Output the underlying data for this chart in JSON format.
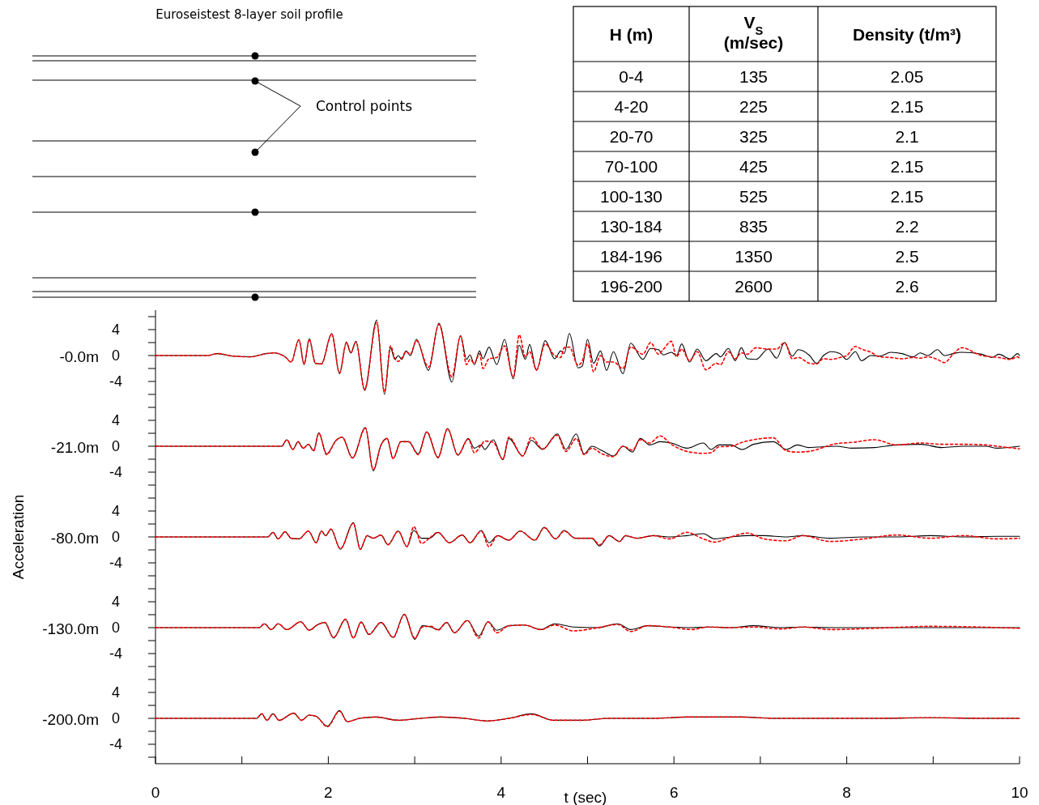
{
  "chart_data": [
    {
      "type": "other",
      "title": "Euroseistest 8-layer soil profile",
      "annotations": [
        "Control points"
      ]
    },
    {
      "type": "other",
      "annotations": [
        "H (m)",
        "V$_{S}$ (m/sec)",
        "Density (t/m³)",
        "0-4",
        "135",
        "2.05",
        "4-20",
        "225",
        "2.15",
        "20-70",
        "325",
        "2.1",
        "70-100",
        "425",
        "2.15",
        "100-130",
        "525",
        "2.15",
        "130-184",
        "835",
        "2.2",
        "184-196",
        "1350",
        "2.5",
        "196-200",
        "2600",
        "2.6"
      ]
    },
    {
      "type": "line",
      "title": "-0.0m",
      "xlim": [
        0,
        10
      ],
      "ylim": [
        -7,
        7
      ],
      "yticks": [
        {
          "value": -6,
          "label": null
        },
        -4,
        {
          "value": -2,
          "label": null
        },
        0,
        {
          "value": 2,
          "label": null
        },
        4,
        {
          "value": 6,
          "label": null
        }
      ],
      "tick_labels": "y",
      "x": [
        0,
        0.6,
        0.72,
        0.9,
        1.1,
        1.28,
        1.37,
        1.5,
        1.57,
        1.66,
        1.72,
        1.78,
        1.85,
        1.92,
        2.04,
        2.13,
        2.21,
        2.26,
        2.32,
        2.42,
        2.56,
        2.65,
        2.72,
        2.77,
        2.81,
        2.85,
        2.9,
        2.95,
        3.02,
        3.16,
        3.28,
        3.43,
        3.53,
        3.6,
        3.64,
        3.69,
        3.75,
        3.79,
        3.86,
        3.95,
        4.04,
        4.14,
        4.21,
        4.28,
        4.33,
        4.41,
        4.51,
        4.62,
        4.69,
        4.73,
        4.79,
        4.89,
        4.94,
        5.0,
        5.07,
        5.15,
        5.22,
        5.3,
        5.41,
        5.5,
        5.64,
        5.73,
        5.82,
        5.88,
        5.97,
        6.03,
        6.09,
        6.18,
        6.27,
        6.37,
        6.49,
        6.54,
        6.63,
        6.71,
        6.78,
        6.85,
        6.95,
        7.09,
        7.19,
        7.28,
        7.37,
        7.44,
        7.57,
        7.65,
        7.73,
        7.82,
        7.92,
        8.0,
        8.1,
        8.17,
        8.28,
        8.38,
        8.51,
        8.64,
        8.77,
        8.85,
        8.94,
        9.05,
        9.13,
        9.23,
        9.33,
        9.56,
        9.68,
        9.76,
        9.89,
        9.98,
        10
      ],
      "series": [
        {
          "color": "#000000",
          "line_style": "solid",
          "values": [
            0,
            0,
            0.3,
            -0.1,
            -0.2,
            0.3,
            0.4,
            -0.2,
            -1.0,
            2.5,
            -1.4,
            2.6,
            -1.2,
            -1.3,
            3.4,
            -2.8,
            2.1,
            0.4,
            2.2,
            -5.4,
            5.5,
            -6.0,
            1.2,
            -0.6,
            0,
            -0.6,
            0.7,
            0,
            2.5,
            -2.3,
            5.0,
            -4.1,
            3.1,
            -0.6,
            0.1,
            -1.4,
            0.7,
            -0.5,
            1.3,
            -1.4,
            2.5,
            -3.6,
            1.6,
            -0.6,
            1.7,
            -2.3,
            2.3,
            -0.5,
            0.7,
            0.3,
            3.4,
            -1.9,
            -1.6,
            2.5,
            -1.2,
            0.7,
            -2.3,
            0.6,
            -2.8,
            1.9,
            -0.6,
            1.1,
            0.9,
            0.1,
            0.5,
            0,
            1.8,
            -1.0,
            1.0,
            -0.8,
            0.3,
            -0.2,
            1.1,
            -0.8,
            1.2,
            -0.5,
            -0.6,
            1.0,
            -0.4,
            2.0,
            -0.1,
            0.9,
            0,
            -1.2,
            0,
            0.6,
            0.3,
            -0.6,
            0.6,
            -0.8,
            0,
            -0.1,
            0.5,
            0.3,
            -0.2,
            0.4,
            0,
            0.9,
            0,
            0.3,
            0.5,
            0.2,
            -0.3,
            0.2,
            -0.5,
            0.3,
            0
          ]
        },
        {
          "color": "#ff0000",
          "line_style": "dotted",
          "values": [
            0,
            0,
            0.3,
            -0.1,
            -0.2,
            0.3,
            0.4,
            -0.2,
            -1.0,
            2.4,
            -1.3,
            2.5,
            -1.2,
            -1.3,
            3.3,
            -2.7,
            2.0,
            0.4,
            2.1,
            -5.2,
            5.1,
            -5.6,
            1.5,
            -0.4,
            -0.9,
            -0.4,
            0.6,
            0.2,
            2.3,
            -1.8,
            4.8,
            -3.3,
            3.0,
            -1.4,
            -0.6,
            -1.2,
            0.3,
            -2.0,
            -0.5,
            -0.3,
            1.5,
            -3.3,
            3.2,
            -0.2,
            0.6,
            -2.2,
            1.8,
            0,
            -0.3,
            1.2,
            1.3,
            -1.5,
            -0.8,
            1.8,
            -2.5,
            0,
            -1.0,
            -1.0,
            -2.0,
            1.3,
            0.2,
            2.0,
            0.2,
            1.0,
            2.2,
            -0.2,
            1.0,
            -0.8,
            0.6,
            -2.2,
            -1.2,
            -1.4,
            0.6,
            -0.5,
            0.4,
            0.2,
            1.2,
            1.0,
            1.0,
            2.0,
            -0.5,
            -0.3,
            -1.2,
            -1.3,
            -0.5,
            -0.6,
            -0.3,
            0,
            1.4,
            1.0,
            0.5,
            -0.2,
            -0.3,
            -0.5,
            -0.3,
            -0.4,
            -0.2,
            -0.6,
            -1.1,
            0.2,
            1.2,
            0,
            -0.2,
            -0.3,
            -0.6,
            -0.2,
            -0.5
          ]
        }
      ]
    },
    {
      "type": "line",
      "title": "-21.0m",
      "xlim": [
        0,
        10
      ],
      "ylim": [
        -7,
        7
      ],
      "yticks": [
        {
          "value": -6,
          "label": null
        },
        -4,
        {
          "value": -2,
          "label": null
        },
        0,
        {
          "value": 2,
          "label": null
        },
        4,
        {
          "value": 6,
          "label": null
        }
      ],
      "tick_labels": "y",
      "x": [
        0,
        1.46,
        1.52,
        1.59,
        1.65,
        1.71,
        1.77,
        1.83,
        1.89,
        1.98,
        2.09,
        2.16,
        2.28,
        2.43,
        2.52,
        2.61,
        2.68,
        2.75,
        2.84,
        2.93,
        3.04,
        3.14,
        3.27,
        3.38,
        3.5,
        3.62,
        3.69,
        3.77,
        3.81,
        3.91,
        4.02,
        4.09,
        4.25,
        4.35,
        4.48,
        4.65,
        4.75,
        4.87,
        4.96,
        5.05,
        5.17,
        5.3,
        5.41,
        5.52,
        5.61,
        5.72,
        5.84,
        5.97,
        6.15,
        6.34,
        6.43,
        6.52,
        6.66,
        6.79,
        6.92,
        7.15,
        7.3,
        7.43,
        7.56,
        7.88,
        8.07,
        8.32,
        8.58,
        8.86,
        9.1,
        9.35,
        9.61,
        9.74,
        10
      ],
      "series": [
        {
          "color": "#000000",
          "line_style": "solid",
          "values": [
            0,
            0,
            1.0,
            -0.5,
            0.7,
            -0.3,
            0.3,
            -0.7,
            2.1,
            -1.2,
            0.9,
            1.4,
            -1.8,
            2.9,
            -3.8,
            0.2,
            1.2,
            -1.9,
            0.7,
            0.7,
            -1.2,
            2.2,
            -1.8,
            2.7,
            -1.4,
            1.2,
            -0.3,
            0.2,
            -0.5,
            1.0,
            -2.1,
            1.2,
            -1.5,
            0.9,
            -0.5,
            1.9,
            -0.5,
            1.9,
            -1.2,
            0,
            -0.7,
            -1.5,
            0,
            -0.9,
            1.2,
            0.2,
            0.7,
            0.5,
            -0.3,
            0.5,
            -0.5,
            0.2,
            0.2,
            -0.5,
            0.3,
            0.7,
            -0.5,
            0.2,
            -0.2,
            0,
            -0.3,
            -0.2,
            0.2,
            0.3,
            -0.2,
            0,
            0,
            -0.3,
            0
          ]
        },
        {
          "color": "#ff0000",
          "line_style": "dotted",
          "values": [
            0,
            0,
            1.0,
            -0.5,
            0.7,
            -0.3,
            0.3,
            -0.7,
            2.0,
            -1.3,
            0.9,
            1.4,
            -1.8,
            2.8,
            -3.6,
            0.2,
            1.2,
            -1.9,
            0.7,
            0.7,
            -1.3,
            2.2,
            -1.7,
            2.7,
            -1.3,
            1.1,
            -1.0,
            0.2,
            0.8,
            0.6,
            -2.0,
            1.4,
            -1.5,
            1.4,
            -0.4,
            1.7,
            -0.8,
            1.2,
            -1.3,
            -0.3,
            -1.2,
            -1.6,
            0,
            -0.6,
            1.0,
            0.5,
            1.6,
            0.3,
            -0.8,
            -1.1,
            -1.0,
            -0.1,
            0,
            0.6,
            1.0,
            1.3,
            -0.7,
            -0.9,
            -0.8,
            0.4,
            0.6,
            1.0,
            0.2,
            0.5,
            0.3,
            0.3,
            0.2,
            0,
            -0.4
          ]
        }
      ]
    },
    {
      "type": "line",
      "title": "-80.0m",
      "ylabel": "Acceleration",
      "xlim": [
        0,
        10
      ],
      "ylim": [
        -7,
        7
      ],
      "yticks": [
        {
          "value": -6,
          "label": null
        },
        -4,
        {
          "value": -2,
          "label": null
        },
        0,
        {
          "value": 2,
          "label": null
        },
        4,
        {
          "value": 6,
          "label": null
        }
      ],
      "tick_labels": "y",
      "x": [
        0,
        1.3,
        1.36,
        1.42,
        1.5,
        1.57,
        1.66,
        1.77,
        1.86,
        1.92,
        1.97,
        2.03,
        2.14,
        2.29,
        2.37,
        2.45,
        2.52,
        2.61,
        2.69,
        2.81,
        2.91,
        2.99,
        3.08,
        3.17,
        3.27,
        3.4,
        3.55,
        3.64,
        3.77,
        3.86,
        3.96,
        4.09,
        4.22,
        4.39,
        4.5,
        4.63,
        4.73,
        4.86,
        5.05,
        5.14,
        5.25,
        5.37,
        5.44,
        5.57,
        5.76,
        5.95,
        6.15,
        6.34,
        6.47,
        6.66,
        6.85,
        7.04,
        7.3,
        7.49,
        7.81,
        8.2,
        8.58,
        8.97,
        9.35,
        9.74,
        10
      ],
      "series": [
        {
          "color": "#000000",
          "line_style": "solid",
          "values": [
            0,
            0,
            0.7,
            -0.3,
            0.8,
            -0.2,
            -0.3,
            0.9,
            -0.9,
            0.9,
            0.2,
            1.2,
            -1.9,
            2.2,
            -1.9,
            0.2,
            -0.2,
            0.3,
            -1.2,
            0.9,
            -1.5,
            1.0,
            -0.2,
            -0.2,
            0.7,
            -0.9,
            0.3,
            -0.9,
            1.0,
            -0.9,
            0.2,
            -0.5,
            0.9,
            -0.5,
            1.5,
            -0.3,
            1.0,
            -0.2,
            -0.2,
            -1.4,
            0.2,
            -0.7,
            0.2,
            -0.2,
            0.2,
            0,
            0.2,
            0.5,
            -0.3,
            0,
            0.2,
            0.2,
            0,
            0.2,
            -0.2,
            0,
            0,
            0.2,
            0,
            0.1,
            0.1
          ]
        },
        {
          "color": "#ff0000",
          "line_style": "dotted",
          "values": [
            0,
            0,
            0.7,
            -0.3,
            0.8,
            -0.2,
            -0.3,
            0.9,
            -0.9,
            0.9,
            0.2,
            1.2,
            -1.8,
            2.1,
            -1.9,
            0.2,
            -0.2,
            0.3,
            -1.2,
            0.9,
            -1.5,
            1.6,
            -1.0,
            -0.2,
            0.7,
            -0.9,
            0.3,
            -0.9,
            0.9,
            -1.5,
            0.2,
            -0.5,
            0.9,
            -0.5,
            1.4,
            -0.3,
            0.9,
            -0.2,
            -0.2,
            -1.2,
            0.2,
            -0.7,
            0.2,
            -0.2,
            0.2,
            -0.3,
            0.7,
            -0.3,
            -0.8,
            0,
            0.6,
            -0.3,
            -0.6,
            0.2,
            -0.7,
            -0.3,
            0.3,
            -0.2,
            0.2,
            -0.3,
            -0.2
          ]
        }
      ]
    },
    {
      "type": "line",
      "title": "-130.0m",
      "xlim": [
        0,
        10
      ],
      "ylim": [
        -7,
        7
      ],
      "yticks": [
        {
          "value": -6,
          "label": null
        },
        -4,
        {
          "value": -2,
          "label": null
        },
        0,
        {
          "value": 2,
          "label": null
        },
        4,
        {
          "value": 6,
          "label": null
        }
      ],
      "tick_labels": "y",
      "x": [
        0,
        1.2,
        1.26,
        1.34,
        1.42,
        1.52,
        1.68,
        1.78,
        1.87,
        1.96,
        2.06,
        2.2,
        2.29,
        2.38,
        2.47,
        2.61,
        2.75,
        2.88,
        3.0,
        3.09,
        3.19,
        3.27,
        3.37,
        3.46,
        3.61,
        3.74,
        3.85,
        3.95,
        4.09,
        4.27,
        4.46,
        4.62,
        4.84,
        5.12,
        5.35,
        5.5,
        5.7,
        5.95,
        6.21,
        6.4,
        6.66,
        6.92,
        7.24,
        7.49,
        7.81,
        8.32,
        8.97,
        10
      ],
      "series": [
        {
          "color": "#000000",
          "line_style": "solid",
          "values": [
            0,
            0,
            0.6,
            -0.3,
            0.6,
            -0.3,
            0.9,
            -0.4,
            0.4,
            0.8,
            -1.6,
            1.3,
            -1.6,
            0.9,
            -1.1,
            0.8,
            -1.5,
            2.1,
            -1.8,
            0.3,
            0.1,
            -0.3,
            0.8,
            -0.8,
            1.1,
            -1.3,
            0.9,
            -0.4,
            0.3,
            0.4,
            -0.3,
            0.6,
            0.1,
            0,
            0.6,
            -0.3,
            0.3,
            0.1,
            0,
            0.1,
            0,
            0.3,
            0,
            0.1,
            0,
            0,
            0,
            0
          ]
        },
        {
          "color": "#ff0000",
          "line_style": "dotted",
          "values": [
            0,
            0,
            0.6,
            -0.3,
            0.6,
            -0.3,
            0.9,
            -0.4,
            0.4,
            0.8,
            -1.5,
            1.3,
            -1.6,
            0.8,
            -1.0,
            0.8,
            -1.5,
            2.0,
            -1.6,
            0.1,
            0.2,
            -0.4,
            0.8,
            -0.8,
            1.1,
            -1.6,
            0.9,
            -0.8,
            0.3,
            0.4,
            -0.3,
            0.4,
            -0.5,
            0,
            0.5,
            -0.6,
            0.3,
            0.1,
            -0.3,
            0.1,
            0,
            0.1,
            -0.2,
            0.1,
            -0.3,
            -0.1,
            0.2,
            -0.1
          ]
        }
      ]
    },
    {
      "type": "line",
      "title": "-200.0m",
      "xlabel": "t (sec)",
      "xlim": [
        0,
        10
      ],
      "xticks": [
        0,
        {
          "value": 1,
          "label": null
        },
        2,
        {
          "value": 3,
          "label": null
        },
        4,
        {
          "value": 5,
          "label": null
        },
        6,
        {
          "value": 7,
          "label": null
        },
        8,
        {
          "value": 9,
          "label": null
        },
        10
      ],
      "ylim": [
        -7,
        7
      ],
      "yticks": [
        {
          "value": -6,
          "label": null
        },
        -4,
        {
          "value": -2,
          "label": null
        },
        0,
        {
          "value": 2,
          "label": null
        },
        4,
        {
          "value": 6,
          "label": null
        }
      ],
      "x": [
        0,
        1.17,
        1.23,
        1.29,
        1.36,
        1.43,
        1.6,
        1.69,
        1.78,
        1.86,
        1.99,
        2.13,
        2.22,
        2.36,
        2.55,
        2.81,
        3.07,
        3.3,
        3.58,
        3.84,
        4.09,
        4.35,
        4.61,
        4.92,
        5.25,
        5.76,
        6.15,
        6.79,
        7.17,
        7.69,
        8.32,
        8.97,
        9.61,
        10
      ],
      "series": [
        {
          "color": "#000000",
          "line_style": "solid",
          "values": [
            0,
            0,
            0.7,
            -0.3,
            0.7,
            -0.3,
            0.8,
            -0.3,
            0.5,
            0.3,
            -1.2,
            1.2,
            -0.5,
            0,
            0.2,
            -0.3,
            0,
            0.2,
            0,
            -0.4,
            0,
            0.7,
            -0.3,
            -0.3,
            0,
            0,
            0.2,
            0.2,
            0,
            0,
            0,
            0.1,
            0,
            0
          ]
        },
        {
          "color": "#ff0000",
          "line_style": "dotted",
          "values": [
            0,
            0,
            0.7,
            -0.3,
            0.7,
            -0.3,
            0.8,
            -0.3,
            0.5,
            0.3,
            -1.3,
            1.1,
            -0.5,
            0,
            0.2,
            -0.3,
            0,
            0.2,
            0,
            -0.4,
            0,
            0.6,
            -0.3,
            -0.3,
            0,
            0,
            0.2,
            0.2,
            0,
            0,
            0,
            0.1,
            0,
            0
          ]
        }
      ]
    }
  ]
}
